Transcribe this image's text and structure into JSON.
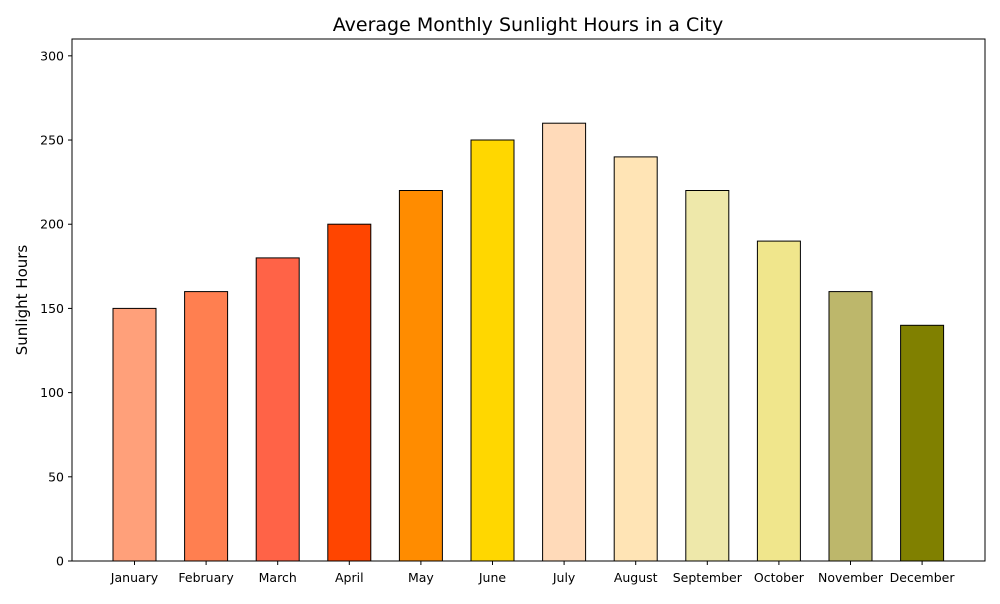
{
  "chart_data": {
    "type": "bar",
    "title": "Average Monthly Sunlight Hours in a City",
    "xlabel": "",
    "ylabel": "Sunlight Hours",
    "ylim": [
      0,
      310
    ],
    "yticks": [
      0,
      50,
      100,
      150,
      200,
      250,
      300
    ],
    "categories": [
      "January",
      "February",
      "March",
      "April",
      "May",
      "June",
      "July",
      "August",
      "September",
      "October",
      "November",
      "December"
    ],
    "values": [
      150,
      160,
      180,
      200,
      220,
      250,
      260,
      240,
      220,
      190,
      160,
      140
    ],
    "colors": [
      "#FFA07A",
      "#FF7F50",
      "#FF6347",
      "#FF4500",
      "#FF8C00",
      "#FFD700",
      "#FFDAB9",
      "#FFE4B5",
      "#EEE8AA",
      "#F0E68C",
      "#BDB76B",
      "#808000"
    ],
    "edge_color": "#000000",
    "grid": false,
    "legend": "none"
  }
}
